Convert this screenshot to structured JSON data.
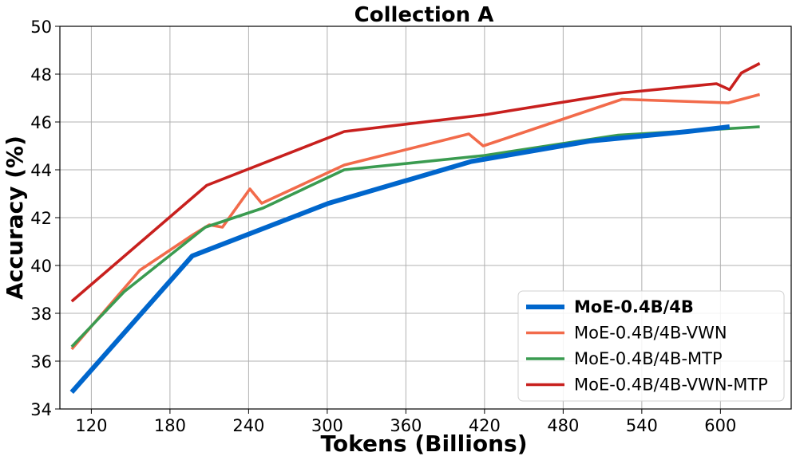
{
  "chart_data": {
    "type": "line",
    "title": "Collection A",
    "xlabel": "Tokens (Billions)",
    "ylabel": "Accuracy (%)",
    "xlim": [
      96,
      654
    ],
    "ylim": [
      34,
      50
    ],
    "x_ticks": [
      120,
      180,
      240,
      300,
      360,
      420,
      480,
      540,
      600
    ],
    "y_ticks": [
      34,
      36,
      38,
      40,
      42,
      44,
      46,
      48,
      50
    ],
    "grid": true,
    "legend_position": "lower-right",
    "series": [
      {
        "name": "MoE-0.4B/4B",
        "color": "#0066cc",
        "bold": true,
        "x": [
          105,
          197,
          301,
          410,
          500,
          575,
          607
        ],
        "y": [
          34.7,
          40.4,
          42.6,
          44.35,
          45.2,
          45.6,
          45.8
        ]
      },
      {
        "name": "MoE-0.4B/4B-VWN",
        "color": "#f26b4b",
        "bold": false,
        "x": [
          105,
          157,
          198,
          210,
          220,
          241,
          250,
          313,
          408,
          419,
          430,
          525,
          606,
          630
        ],
        "y": [
          36.5,
          39.8,
          41.3,
          41.7,
          41.6,
          43.2,
          42.6,
          44.2,
          45.5,
          45.0,
          45.2,
          46.95,
          46.8,
          47.15
        ]
      },
      {
        "name": "MoE-0.4B/4B-MTP",
        "color": "#3a9b50",
        "bold": false,
        "x": [
          105,
          145,
          207,
          251,
          313,
          420,
          522,
          630
        ],
        "y": [
          36.6,
          38.9,
          41.6,
          42.4,
          44.0,
          44.6,
          45.45,
          45.8
        ]
      },
      {
        "name": "MoE-0.4B/4B-VWN-MTP",
        "color": "#c8201e",
        "bold": false,
        "x": [
          105,
          208,
          313,
          420,
          522,
          597,
          607,
          616,
          630
        ],
        "y": [
          38.5,
          43.35,
          45.6,
          46.3,
          47.2,
          47.6,
          47.35,
          48.05,
          48.45
        ]
      }
    ]
  }
}
